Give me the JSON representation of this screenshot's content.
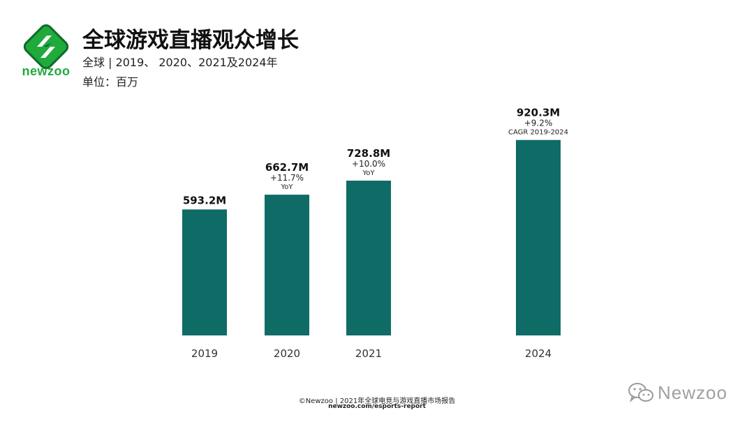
{
  "header": {
    "brand": "newzoo",
    "title": "全球游戏直播观众增长",
    "subtitle": "全球 | 2019、 2020、2021及2024年",
    "unit": "单位：百万"
  },
  "colors": {
    "bar": "#0f6b66",
    "brand_green": "#1faa3b",
    "brand_dark": "#0d6b2c"
  },
  "chart_data": {
    "type": "bar",
    "categories": [
      "2019",
      "2020",
      "2021",
      "2024"
    ],
    "values": [
      593.2,
      662.7,
      728.8,
      920.3
    ],
    "value_labels": [
      "593.2M",
      "662.7M",
      "728.8M",
      "920.3M"
    ],
    "growth_labels": [
      "",
      "+11.7%",
      "+10.0%",
      "+9.2%"
    ],
    "growth_notes": [
      "",
      "YoY",
      "YoY",
      "CAGR 2019-2024"
    ],
    "ylim": [
      0,
      1000
    ],
    "grid": false,
    "legend": "none",
    "xlabel": "",
    "ylabel": ""
  },
  "footer": {
    "line1": "©Newzoo | 2021年全球电竞与游戏直播市场报告",
    "line2": "newzoo.com/esports-report"
  },
  "watermark": {
    "text": "Newzoo",
    "icon": "wechat-icon"
  }
}
